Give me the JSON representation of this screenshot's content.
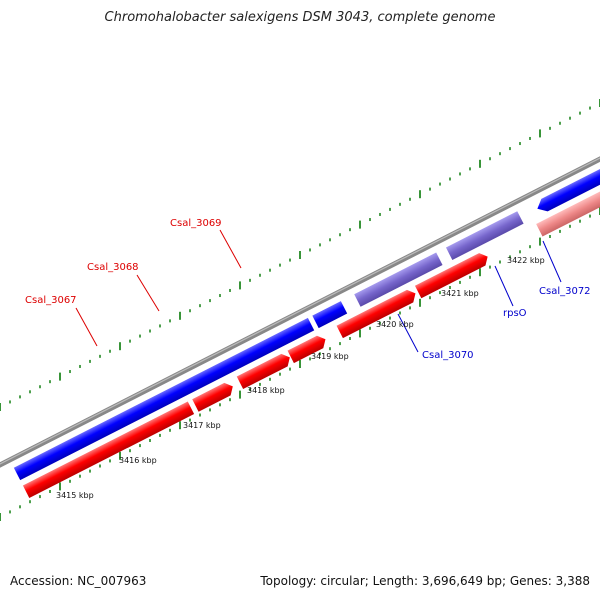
{
  "title": "Chromohalobacter salexigens DSM 3043, complete genome",
  "footer": {
    "accession": "Accession: NC_007963",
    "summary": "Topology: circular; Length: 3,696,649 bp; Genes: 3,388"
  },
  "colors": {
    "forward_cds": "#0000ff",
    "forward_highlight": "#7766cc",
    "reverse_cds": "#ff0000",
    "reverse_light": "#ee8888",
    "backbone": "#888888",
    "tick": "#228822",
    "label_red": "#dd0000",
    "label_blue": "#0000cc"
  },
  "kbp_labels": [
    "3415 kbp",
    "3416 kbp",
    "3417 kbp",
    "3418 kbp",
    "3419 kbp",
    "3420 kbp",
    "3421 kbp",
    "3422 kbp"
  ],
  "gene_labels": {
    "csal_3067": "Csal_3067",
    "csal_3068": "Csal_3068",
    "csal_3069": "Csal_3069",
    "csal_3070": "Csal_3070",
    "rpso": "rpsO",
    "csal_3072": "Csal_3072"
  }
}
